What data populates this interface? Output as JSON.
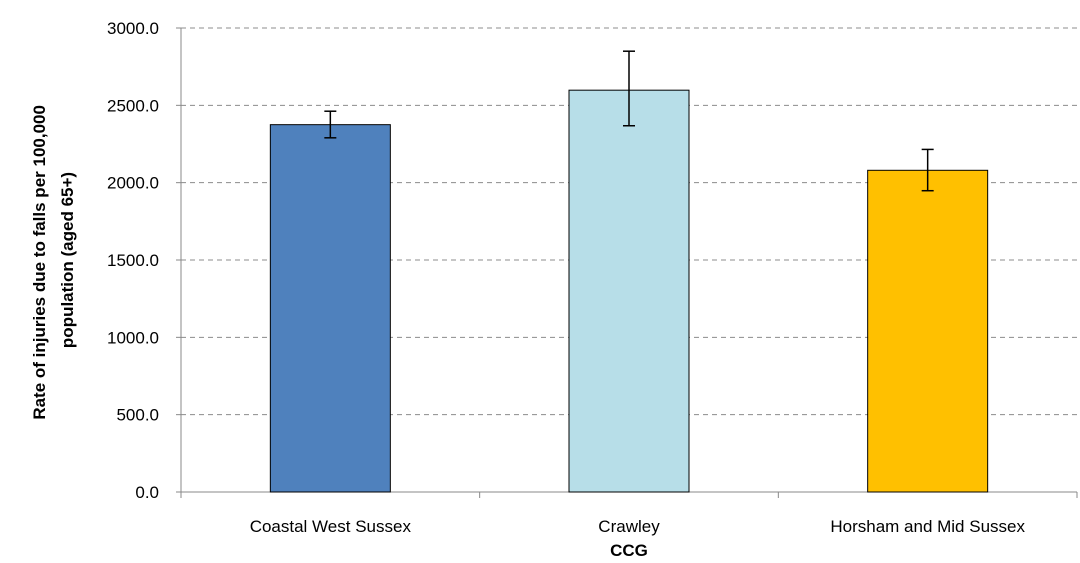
{
  "chart_data": {
    "type": "bar",
    "title": "",
    "xlabel": "CCG",
    "ylabel_lines": [
      "Rate of injuries due to falls per 100,000",
      "population (aged 65+)"
    ],
    "categories": [
      "Coastal West Sussex",
      "Crawley",
      "Horsham and Mid Sussex"
    ],
    "values": [
      2375,
      2598,
      2080
    ],
    "error_low": [
      2290,
      2368,
      1948
    ],
    "error_high": [
      2462,
      2850,
      2215
    ],
    "bar_colors": [
      "#4f81bd",
      "#b7dee8",
      "#ffc000"
    ],
    "ylim": [
      0,
      3000
    ],
    "yticks": [
      0,
      500,
      1000,
      1500,
      2000,
      2500,
      3000
    ],
    "ytick_labels": [
      "0.0",
      "500.0",
      "1000.0",
      "1500.0",
      "2000.0",
      "2500.0",
      "3000.0"
    ],
    "grid": true,
    "legend": "none"
  }
}
